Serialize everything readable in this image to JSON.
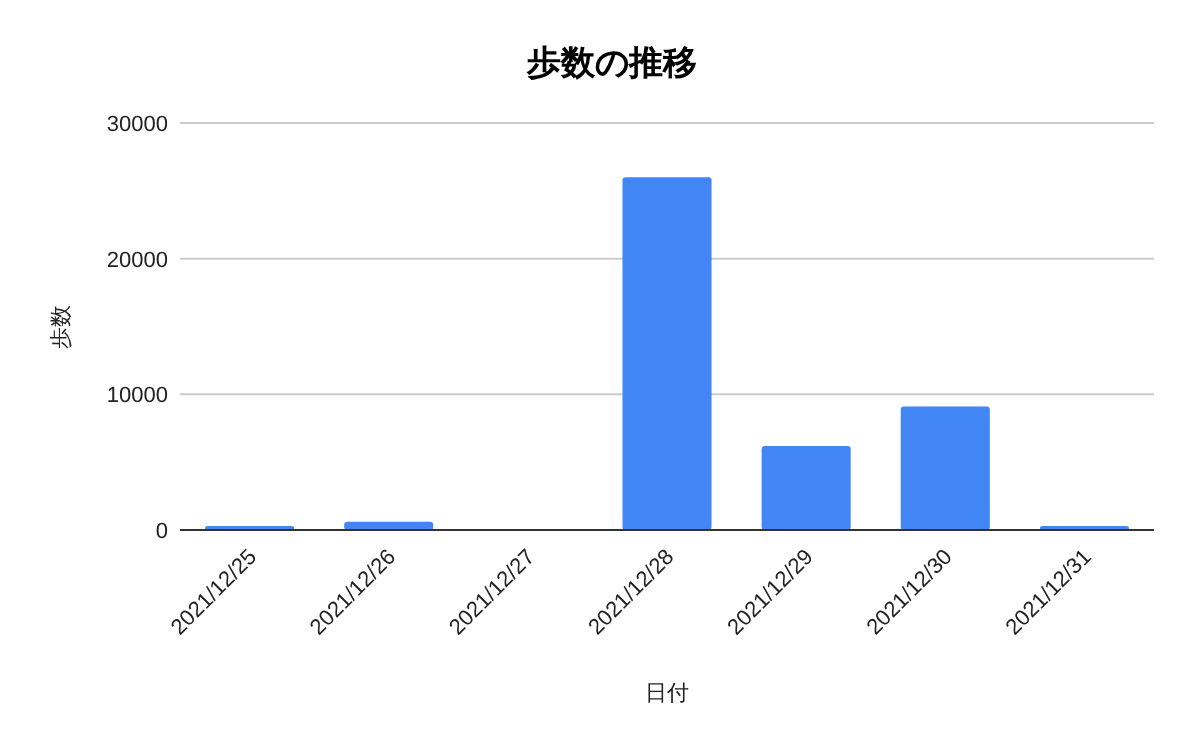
{
  "chart_data": {
    "type": "bar",
    "title": "歩数の推移",
    "xlabel": "日付",
    "ylabel": "歩数",
    "categories": [
      "2021/12/25",
      "2021/12/26",
      "2021/12/27",
      "2021/12/28",
      "2021/12/29",
      "2021/12/30",
      "2021/12/31"
    ],
    "values": [
      300,
      600,
      0,
      26000,
      6200,
      9100,
      300
    ],
    "color": "#4285f4",
    "ylim": [
      0,
      30000
    ],
    "yticks": [
      0,
      10000,
      20000,
      30000
    ],
    "grid": "y"
  }
}
